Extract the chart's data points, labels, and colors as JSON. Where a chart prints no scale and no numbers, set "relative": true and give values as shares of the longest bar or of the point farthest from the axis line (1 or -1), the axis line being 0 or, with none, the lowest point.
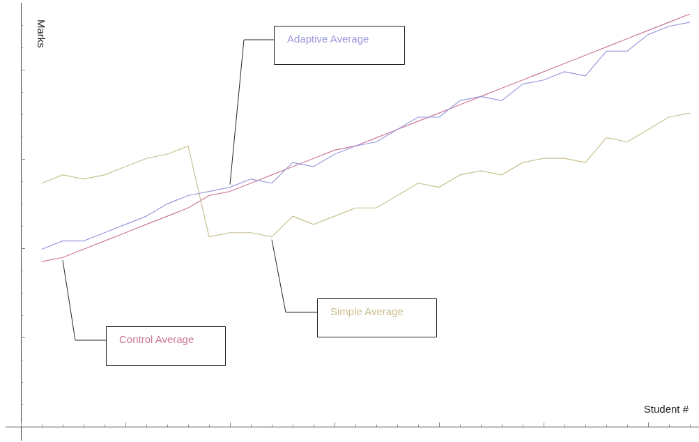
{
  "chart_data": {
    "type": "line",
    "relative": true,
    "xlabel": "Student #",
    "ylabel": "Marks",
    "legend": false,
    "marker": "none",
    "categories": [
      null,
      null,
      null,
      null,
      null,
      null,
      null,
      null,
      null,
      null,
      null,
      null,
      null,
      null,
      null,
      null,
      null,
      null,
      null,
      null,
      null,
      null,
      null,
      null,
      null,
      null,
      null,
      null,
      null,
      null,
      null,
      null
    ],
    "series": [
      {
        "name": "Adaptive Average",
        "color": "#9999dd",
        "values": [
          0.43,
          0.45,
          0.45,
          0.47,
          0.49,
          0.51,
          0.54,
          0.56,
          0.57,
          0.58,
          0.6,
          0.59,
          0.64,
          0.63,
          0.66,
          0.68,
          0.69,
          0.72,
          0.75,
          0.75,
          0.79,
          0.8,
          0.79,
          0.83,
          0.84,
          0.86,
          0.85,
          0.91,
          0.91,
          0.95,
          0.97,
          0.98
        ]
      },
      {
        "name": "Simple Average",
        "color": "#c8c090",
        "values": [
          0.59,
          0.61,
          0.6,
          0.61,
          0.63,
          0.65,
          0.66,
          0.68,
          0.46,
          0.47,
          0.47,
          0.46,
          0.51,
          0.49,
          0.51,
          0.53,
          0.53,
          0.56,
          0.59,
          0.58,
          0.61,
          0.62,
          0.61,
          0.64,
          0.65,
          0.65,
          0.64,
          0.7,
          0.69,
          0.72,
          0.75,
          0.76
        ]
      },
      {
        "name": "Control Average",
        "color": "#cc7799",
        "values": [
          0.4,
          0.41,
          0.43,
          0.45,
          0.47,
          0.49,
          0.51,
          0.53,
          0.56,
          0.57,
          0.59,
          0.61,
          0.63,
          0.65,
          0.67,
          0.68,
          0.7,
          0.72,
          0.74,
          0.76,
          0.78,
          0.8,
          0.82,
          0.84,
          0.86,
          0.88,
          0.9,
          0.92,
          0.94,
          0.96,
          0.98,
          1
        ]
      }
    ]
  }
}
